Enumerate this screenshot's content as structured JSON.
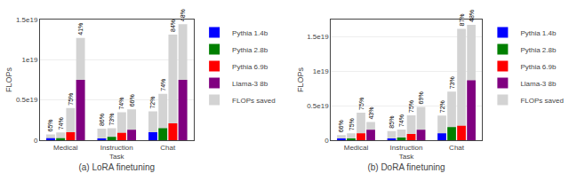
{
  "chart_data": [
    {
      "type": "bar",
      "xlabel": "(a) LoRA finetuning",
      "ylabel": "FLOPs",
      "categories": [
        "Medical",
        "Instruction\nTask",
        "Chat"
      ],
      "series": [
        {
          "name": "Pythia 1.4b",
          "color": "blue",
          "values": [
            2.5e+17,
            2e+17,
            1e+18
          ],
          "totals": [
            7.142857142857143e+17,
            1.4285714285714286e+18,
            3.5714285714285716e+18
          ],
          "total_labels": [
            "65%",
            "86%",
            "72%"
          ]
        },
        {
          "name": "Pythia 2.8b",
          "color": "green",
          "values": [
            2.5e+17,
            4e+17,
            1.5e+18
          ],
          "totals": [
            9.615384615384614e+17,
            1.4814814814814815e+18,
            5.769230769230769e+18
          ],
          "total_labels": [
            "74%",
            "73%",
            "74%"
          ]
        },
        {
          "name": "Pythia 6.9b",
          "color": "red",
          "values": [
            1e+18,
            9e+17,
            2.1e+18
          ],
          "totals": [
            4e+18,
            3.4615384615384617e+18,
            1.3125e+19
          ],
          "total_labels": [
            "75%",
            "74%",
            "84%"
          ]
        },
        {
          "name": "Llama-3 8b",
          "color": "purple",
          "values": [
            7.5e+18,
            1.3e+18,
            7.5e+18
          ],
          "totals": [
            1.271186440677966e+19,
            3.823529411764706e+18,
            1.4423076923076923e+19
          ],
          "total_labels": [
            "41%",
            "66%",
            "48%"
          ]
        }
      ],
      "background": {
        "name": "FLOPs saved",
        "color": "lightgray"
      },
      "ylim": [
        0,
        1.5e+19
      ],
      "yticks": [
        0,
        {
          "value": 5e+18,
          "label": "0.5e19"
        },
        {
          "value": 1e+19,
          "label": "1e19"
        },
        {
          "value": 1.5e+19,
          "label": "1.5e19"
        }
      ],
      "grid": true,
      "legend": "right"
    },
    {
      "type": "bar",
      "xlabel": "(b) DoRA finetuning",
      "ylabel": "FLOPs",
      "categories": [
        "Medical",
        "Instruction\nTask",
        "Chat"
      ],
      "series": [
        {
          "name": "Pythia 1.4b",
          "color": "blue",
          "values": [
            2.5e+17,
            2e+17,
            1e+18
          ],
          "totals": [
            7.352941176470588e+17,
            1.3333333333333332e+18,
            3.5714285714285716e+18
          ],
          "total_labels": [
            "66%",
            "85%",
            "72%"
          ]
        },
        {
          "name": "Pythia 2.8b",
          "color": "green",
          "values": [
            2.5e+17,
            4e+17,
            1.9e+18
          ],
          "totals": [
            1e+18,
            1.5384615384615386e+18,
            7.037037037037037e+18
          ],
          "total_labels": [
            "75%",
            "74%",
            "73%"
          ]
        },
        {
          "name": "Pythia 6.9b",
          "color": "red",
          "values": [
            1e+18,
            9e+17,
            2.1e+18
          ],
          "totals": [
            4e+18,
            3.6e+18,
            1.6153846153846153e+19
          ],
          "total_labels": [
            "75%",
            "75%",
            "87%"
          ]
        },
        {
          "name": "Llama-3 8b",
          "color": "purple",
          "values": [
            1.5e+18,
            1.5e+18,
            8.7e+18
          ],
          "totals": [
            2.631578947368421e+18,
            4.838709677419355e+18,
            1.6730769230769232e+19
          ],
          "total_labels": [
            "43%",
            "69%",
            "48%"
          ]
        }
      ],
      "background": {
        "name": "FLOPs saved",
        "color": "lightgray"
      },
      "ylim": [
        0,
        1.75e+19
      ],
      "yticks": [
        0,
        {
          "value": 5e+18,
          "label": "0.5e19"
        },
        {
          "value": 1e+19,
          "label": "1e19"
        },
        {
          "value": 1.5e+19,
          "label": "1.5e19"
        }
      ],
      "grid": true,
      "legend": "right"
    }
  ]
}
